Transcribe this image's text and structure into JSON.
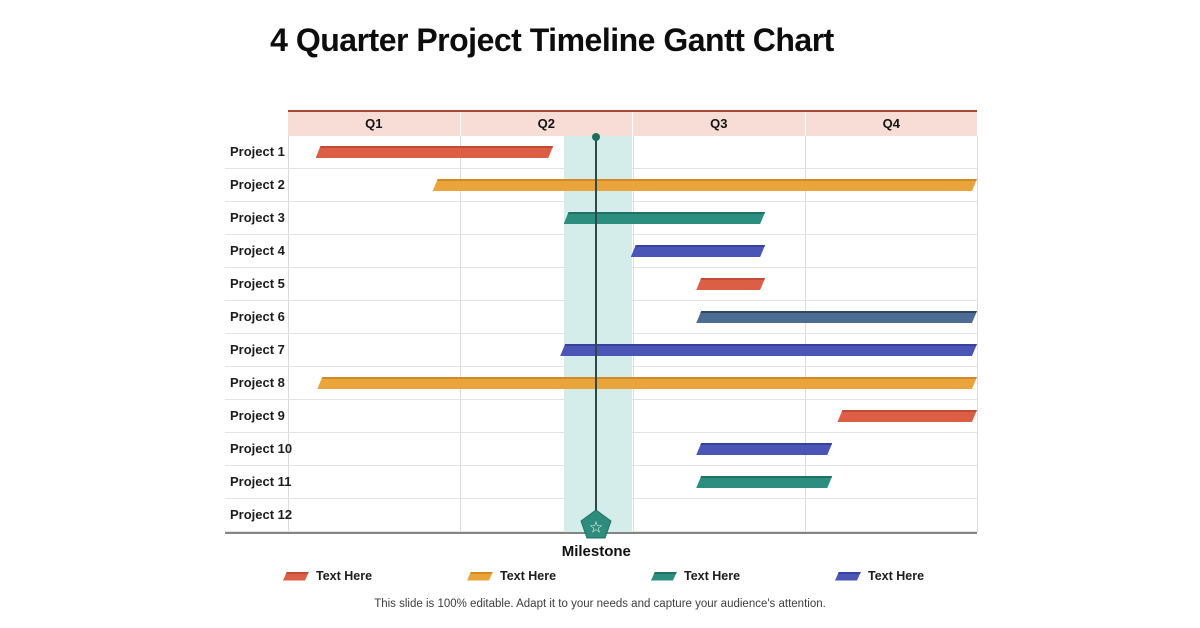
{
  "title": "4 Quarter Project Timeline Gantt Chart",
  "footer_note": "This slide is 100% editable. Adapt it to your needs and capture your audience's attention.",
  "colors": {
    "header_bg": "#F8DDD6",
    "header_top_border": "#A34A38",
    "band": "#D5EDEA",
    "milestone_line": "#2C4A45",
    "milestone_dot": "#1E6D5E",
    "milestone_marker_fill": "#2E8C7D",
    "milestone_marker_edge": "#1E7163",
    "grid_hline": "#E3E3E3",
    "grid_vline": "#DBDBDB",
    "chart_bottom_border": "#858585",
    "series": {
      "red": {
        "fill": "#DA5F45",
        "edge": "#C14B35"
      },
      "amber": {
        "fill": "#E9A53C",
        "edge": "#D18A26"
      },
      "teal": {
        "fill": "#2B8E7E",
        "edge": "#1E7163"
      },
      "indigo": {
        "fill": "#4A55B5",
        "edge": "#3741A0"
      },
      "slate": {
        "fill": "#4E6B93",
        "edge": "#2F4666"
      }
    }
  },
  "chart_data": {
    "type": "bar",
    "variant": "gantt-timeline",
    "title": "4 Quarter Project Timeline Gantt Chart",
    "x_axis": {
      "categories": [
        "Q1",
        "Q2",
        "Q3",
        "Q4"
      ],
      "range_quarters": [
        0,
        4
      ]
    },
    "rows": [
      {
        "label": "Project 1",
        "start": 0.16,
        "end": 1.54,
        "color": "red"
      },
      {
        "label": "Project 2",
        "start": 0.84,
        "end": 4.0,
        "color": "amber"
      },
      {
        "label": "Project 3",
        "start": 1.6,
        "end": 2.77,
        "color": "teal"
      },
      {
        "label": "Project 4",
        "start": 1.99,
        "end": 2.77,
        "color": "indigo"
      },
      {
        "label": "Project 5",
        "start": 2.37,
        "end": 2.77,
        "color": "red"
      },
      {
        "label": "Project 6",
        "start": 2.37,
        "end": 4.0,
        "color": "slate"
      },
      {
        "label": "Project 7",
        "start": 1.58,
        "end": 4.0,
        "color": "indigo"
      },
      {
        "label": "Project 8",
        "start": 0.17,
        "end": 4.0,
        "color": "amber"
      },
      {
        "label": "Project 9",
        "start": 3.19,
        "end": 4.0,
        "color": "red"
      },
      {
        "label": "Project 10",
        "start": 2.37,
        "end": 3.16,
        "color": "indigo"
      },
      {
        "label": "Project 11",
        "start": 2.37,
        "end": 3.16,
        "color": "teal"
      },
      {
        "label": "Project 12",
        "start": null,
        "end": null,
        "color": null
      }
    ],
    "milestone": {
      "label": "Milestone",
      "position_quarters": 1.79,
      "band_quarters": [
        1.6,
        2.0
      ]
    }
  },
  "legend": [
    {
      "label": "Text Here",
      "color": "red"
    },
    {
      "label": "Text Here",
      "color": "amber"
    },
    {
      "label": "Text Here",
      "color": "teal"
    },
    {
      "label": "Text Here",
      "color": "indigo"
    }
  ]
}
